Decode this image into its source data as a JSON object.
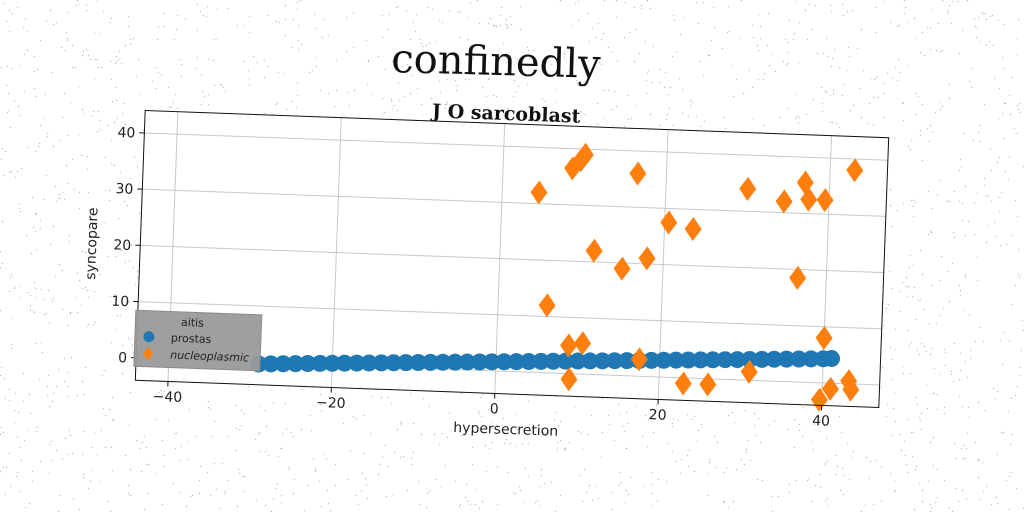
{
  "suptitle": "confinedly",
  "chart_data": {
    "type": "scatter",
    "title": "J O sarcoblast",
    "xlabel": "hypersecretion",
    "ylabel": "syncopare",
    "xlim": [
      -44,
      47
    ],
    "ylim": [
      -4,
      44
    ],
    "xticks": [
      -40,
      -20,
      0,
      20,
      40
    ],
    "yticks": [
      0,
      10,
      20,
      30,
      40
    ],
    "xtick_labels": [
      "−40",
      "−20",
      "0",
      "20",
      "40"
    ],
    "ytick_labels": [
      "0",
      "10",
      "20",
      "30",
      "40"
    ],
    "grid": true,
    "legend": {
      "title": "aitis",
      "placement": "lower-left"
    },
    "series": [
      {
        "name": "prostas",
        "marker": "circle",
        "color": "#1f77b4",
        "x": [
          -29,
          -27.5,
          -26,
          -24.5,
          -23,
          -21.5,
          -20,
          -18.5,
          -17,
          -15.5,
          -14,
          -12.5,
          -11,
          -9.5,
          -8,
          -6.5,
          -5,
          -3.5,
          -2,
          -0.5,
          1,
          2.5,
          4,
          5.5,
          7,
          8.5,
          10,
          11.5,
          13,
          14.5,
          16,
          17.5,
          19,
          20.5,
          22,
          23.5,
          25,
          26.5,
          28,
          29.5,
          31,
          32.5,
          34,
          35.5,
          37,
          38.5,
          40,
          41
        ],
        "y": [
          -0.3,
          -0.2,
          -0.1,
          0,
          0.1,
          0.2,
          0.3,
          0.4,
          0.5,
          0.6,
          0.7,
          0.8,
          0.9,
          1.0,
          1.1,
          1.2,
          1.3,
          1.4,
          1.5,
          1.6,
          1.7,
          1.8,
          1.9,
          2.0,
          2.1,
          2.2,
          2.3,
          2.4,
          2.5,
          2.6,
          2.7,
          2.8,
          2.9,
          3.0,
          3.1,
          3.2,
          3.3,
          3.4,
          3.5,
          3.6,
          3.7,
          3.8,
          3.9,
          4.0,
          4.1,
          4.2,
          4.3,
          4.4
        ]
      },
      {
        "name": "nucleoplasmic",
        "marker": "diamond",
        "color": "#ff7f0e",
        "x": [
          4.5,
          6,
          8.5,
          8.8,
          9,
          9.5,
          10,
          10.5,
          11.5,
          15,
          16.5,
          17.5,
          18,
          20.5,
          23,
          23.5,
          26,
          30,
          31,
          34.5,
          36.5,
          37,
          37.5,
          39.5,
          39.7,
          40,
          41,
          43,
          43.2,
          43.5
        ],
        "y": [
          32,
          12,
          36.5,
          5,
          -1,
          38,
          39,
          5.5,
          22,
          19,
          36,
          3,
          21,
          27.5,
          -1,
          26.5,
          -1,
          34,
          1.5,
          32,
          18.5,
          35.5,
          32.5,
          32.5,
          -3,
          8,
          -1,
          38,
          0.5,
          -1
        ]
      }
    ]
  }
}
